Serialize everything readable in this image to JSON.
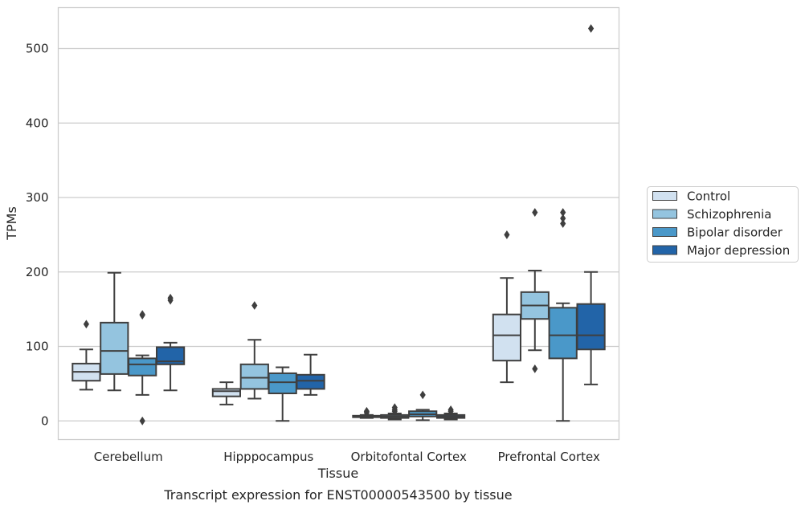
{
  "chart_data": {
    "type": "box",
    "caption": "Transcript expression for ENST00000543500 by tissue",
    "xlabel": "Tissue",
    "ylabel": "TPMs",
    "ylim": [
      -25,
      555
    ],
    "yticks": [
      0,
      100,
      200,
      300,
      400,
      500
    ],
    "grid": "horizontal",
    "legend_position": "right, outside plot",
    "categories": [
      "Cerebellum",
      "Hipppocampus",
      "Orbitofontal Cortex",
      "Prefrontal Cortex"
    ],
    "series": [
      {
        "name": "Control",
        "color": "#d1e1f0",
        "boxes": [
          {
            "whisker_low": 42,
            "q1": 54,
            "median": 66,
            "q3": 77,
            "whisker_high": 96,
            "outliers": [
              130
            ]
          },
          {
            "whisker_low": 22,
            "q1": 33,
            "median": 40,
            "q3": 43,
            "whisker_high": 52,
            "outliers": []
          },
          {
            "whisker_low": 4,
            "q1": 5,
            "median": 6,
            "q3": 7,
            "whisker_high": 8,
            "outliers": [
              11,
              13
            ]
          },
          {
            "whisker_low": 52,
            "q1": 81,
            "median": 115,
            "q3": 143,
            "whisker_high": 192,
            "outliers": [
              250
            ]
          }
        ]
      },
      {
        "name": "Schizophrenia",
        "color": "#94c4df",
        "boxes": [
          {
            "whisker_low": 41,
            "q1": 63,
            "median": 94,
            "q3": 132,
            "whisker_high": 199,
            "outliers": []
          },
          {
            "whisker_low": 30,
            "q1": 43,
            "median": 58,
            "q3": 76,
            "whisker_high": 109,
            "outliers": [
              155
            ]
          },
          {
            "whisker_low": 2,
            "q1": 4,
            "median": 6,
            "q3": 8,
            "whisker_high": 10,
            "outliers": [
              13,
              15,
              18
            ]
          },
          {
            "whisker_low": 95,
            "q1": 137,
            "median": 155,
            "q3": 173,
            "whisker_high": 202,
            "outliers": [
              70,
              280
            ]
          }
        ]
      },
      {
        "name": "Bipolar disorder",
        "color": "#4a98c9",
        "boxes": [
          {
            "whisker_low": 35,
            "q1": 61,
            "median": 76,
            "q3": 84,
            "whisker_high": 88,
            "outliers": [
              0,
              142,
              143
            ]
          },
          {
            "whisker_low": 0,
            "q1": 37,
            "median": 52,
            "q3": 64,
            "whisker_high": 72,
            "outliers": []
          },
          {
            "whisker_low": 1,
            "q1": 6,
            "median": 9,
            "q3": 13,
            "whisker_high": 15,
            "outliers": [
              35
            ]
          },
          {
            "whisker_low": 0,
            "q1": 84,
            "median": 115,
            "q3": 152,
            "whisker_high": 158,
            "outliers": [
              265,
              272,
              280
            ]
          }
        ]
      },
      {
        "name": "Major depression",
        "color": "#2264a8",
        "boxes": [
          {
            "whisker_low": 41,
            "q1": 76,
            "median": 80,
            "q3": 99,
            "whisker_high": 105,
            "outliers": [
              162,
              165
            ]
          },
          {
            "whisker_low": 35,
            "q1": 43,
            "median": 54,
            "q3": 62,
            "whisker_high": 89,
            "outliers": []
          },
          {
            "whisker_low": 2,
            "q1": 4,
            "median": 6,
            "q3": 8,
            "whisker_high": 10,
            "outliers": [
              13,
              15
            ]
          },
          {
            "whisker_low": 49,
            "q1": 96,
            "median": 115,
            "q3": 157,
            "whisker_high": 200,
            "outliers": [
              527
            ]
          }
        ]
      }
    ]
  }
}
